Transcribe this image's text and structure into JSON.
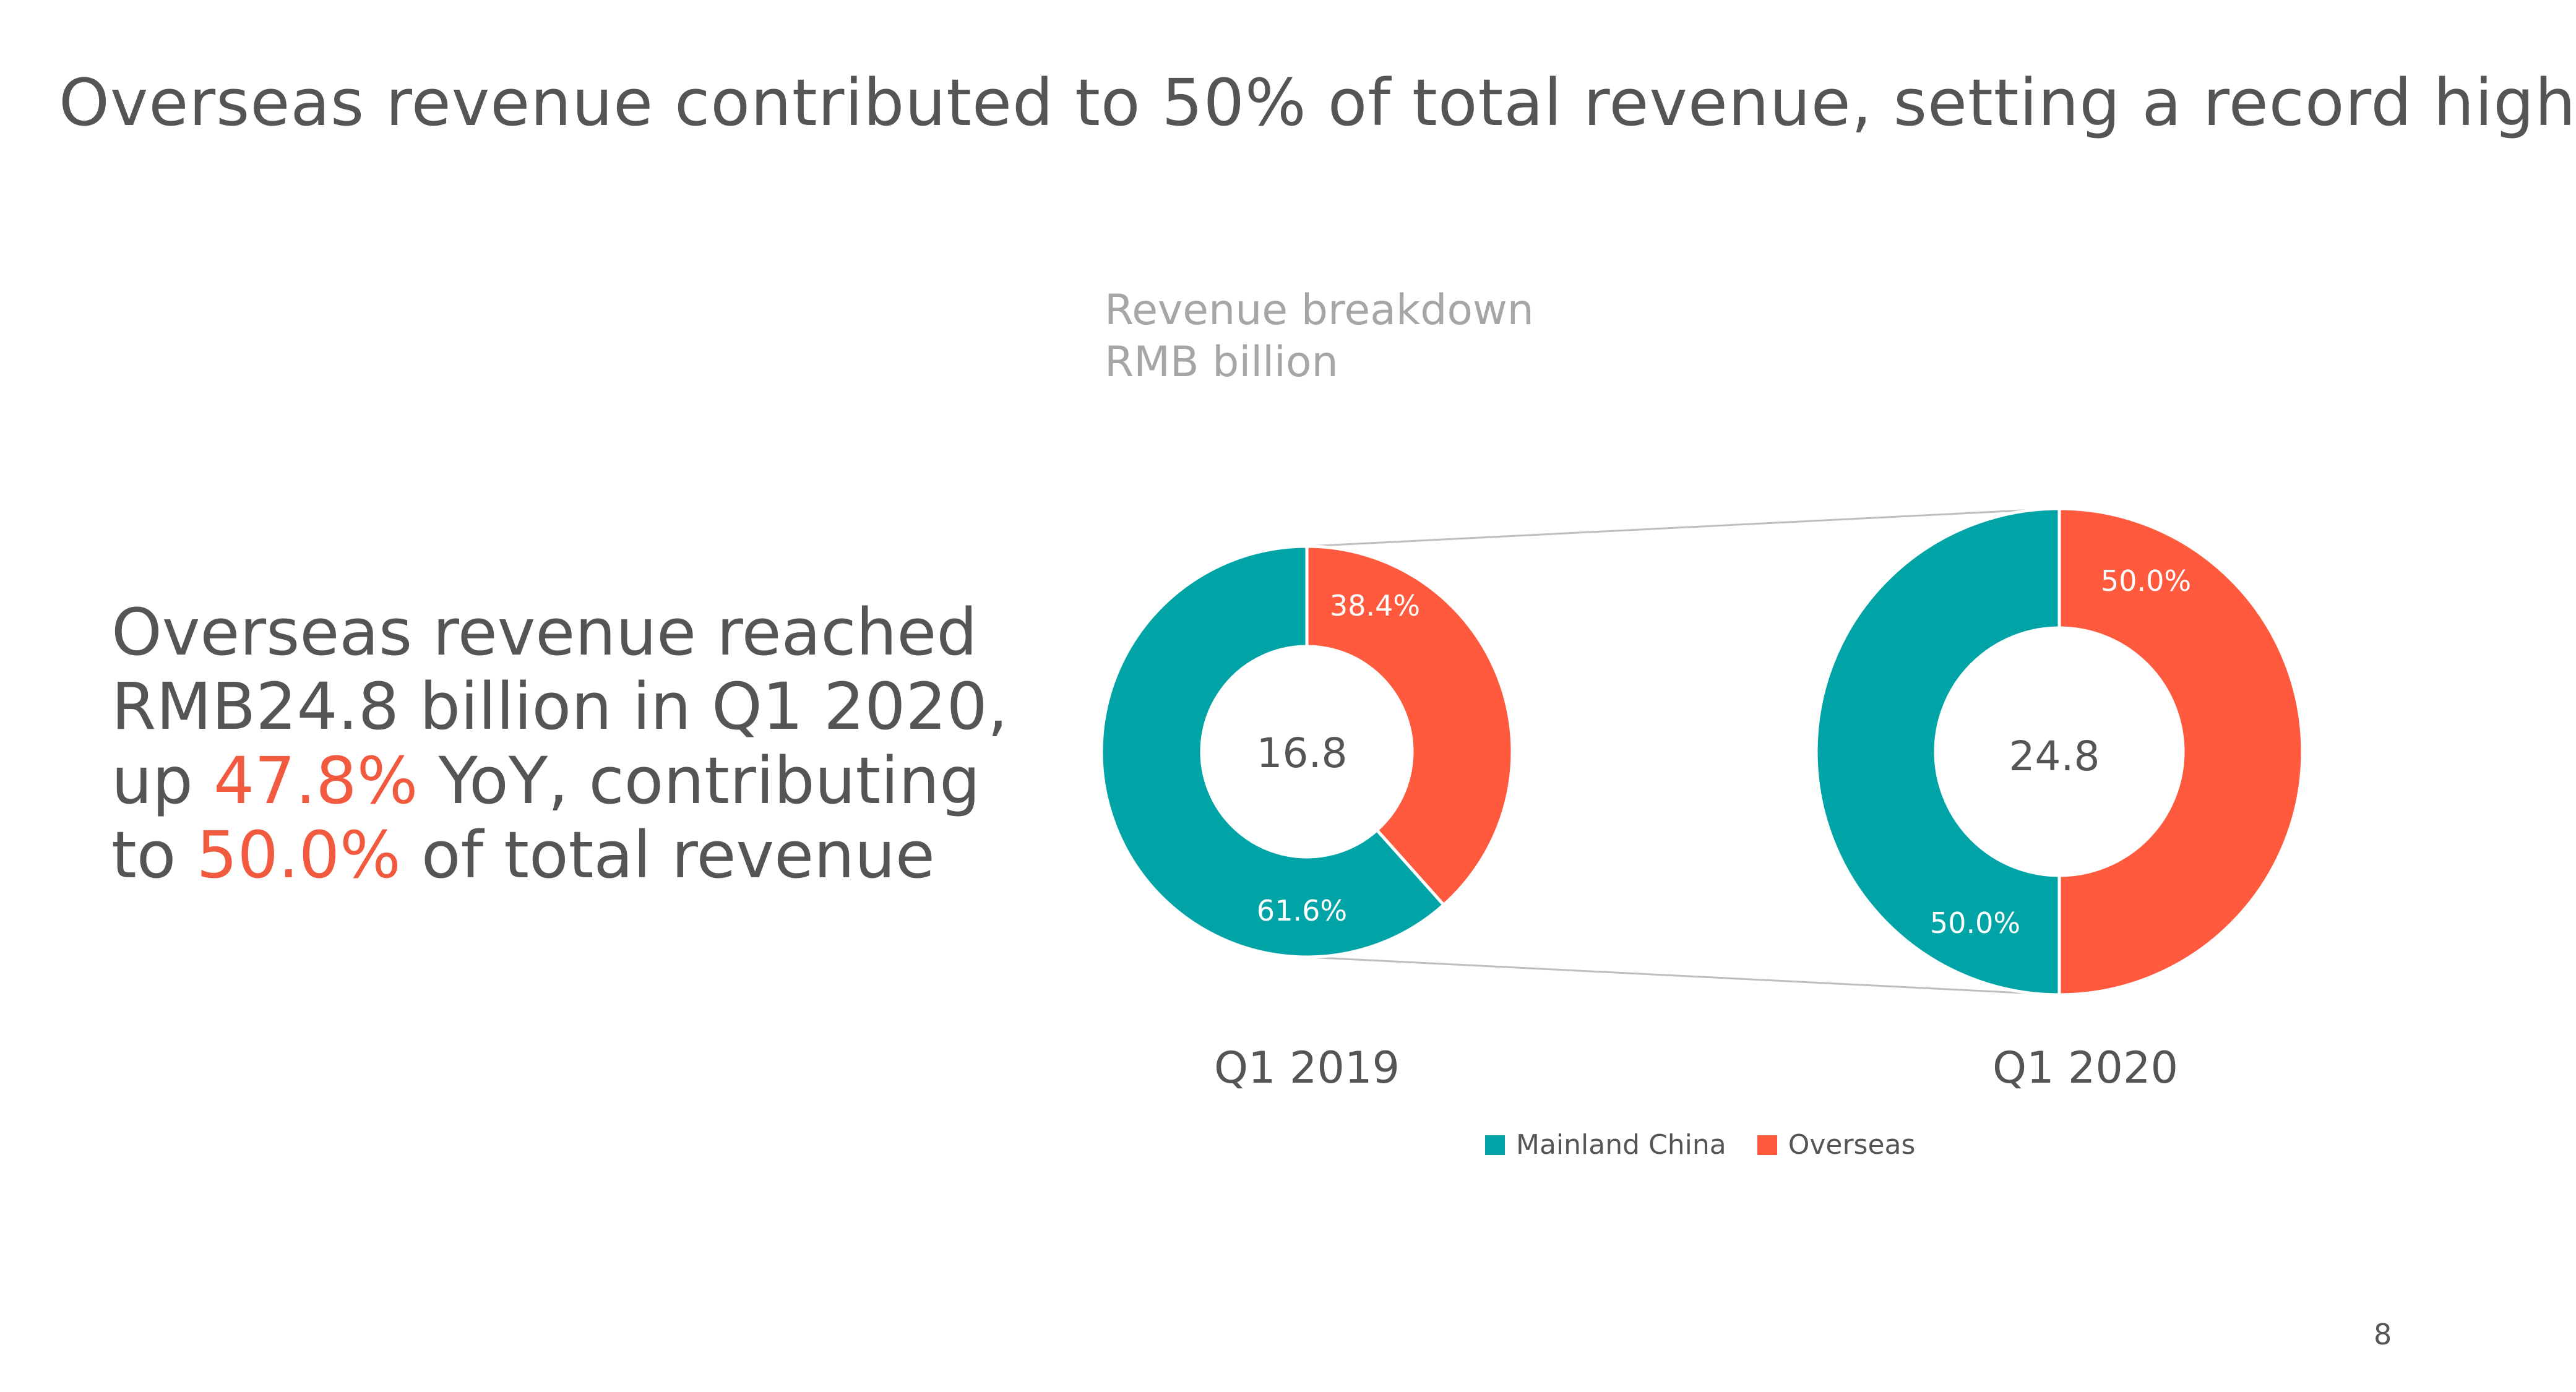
{
  "slide": {
    "title": "Overseas revenue contributed to 50% of total revenue, setting a record high",
    "page_number": "8",
    "body": {
      "line1": "Overseas revenue reached",
      "line2": "RMB24.8 billion in Q1 2020,",
      "line3_pre": "up ",
      "line3_hl": "47.8%",
      "line3_post": " YoY, contributing",
      "line4_pre": "to ",
      "line4_hl": "50.0%",
      "line4_post": " of total revenue"
    }
  },
  "colors": {
    "mainland": "#00A4A6",
    "overseas": "#FF5A3D",
    "highlight": "#F15A3F",
    "text": "#555555",
    "subtitle": "#A6A6A6"
  },
  "chart_data": {
    "type": "donut",
    "title": "Revenue breakdown",
    "subtitle": "RMB billion",
    "legend": [
      "Mainland China",
      "Overseas"
    ],
    "legend_position": "bottom",
    "series": [
      {
        "name": "Q1 2019",
        "total": "16.8",
        "slices": [
          {
            "name": "Mainland China",
            "value": 61.6,
            "label": "61.6%"
          },
          {
            "name": "Overseas",
            "value": 38.4,
            "label": "38.4%"
          }
        ]
      },
      {
        "name": "Q1 2020",
        "total": "24.8",
        "slices": [
          {
            "name": "Mainland China",
            "value": 50.0,
            "label": "50.0%"
          },
          {
            "name": "Overseas",
            "value": 50.0,
            "label": "50.0%"
          }
        ]
      }
    ]
  }
}
